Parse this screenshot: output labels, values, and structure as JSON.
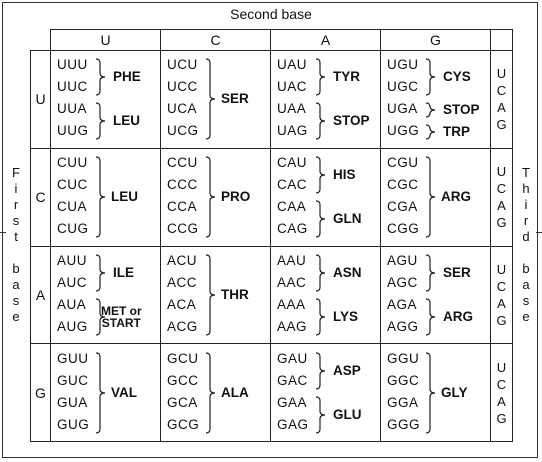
{
  "second_base_title": "Second base",
  "first_base_label": "First base",
  "third_base_label": "Third base",
  "columns": [
    "U",
    "C",
    "A",
    "G"
  ],
  "rows": [
    {
      "base": "U",
      "third": [
        "U",
        "C",
        "A",
        "G"
      ],
      "cells": [
        {
          "codons": [
            "UUU",
            "UUC",
            "UUA",
            "UUG"
          ],
          "groups": [
            {
              "amino": "PHE"
            },
            {
              "amino": "LEU"
            }
          ]
        },
        {
          "codons": [
            "UCU",
            "UCC",
            "UCA",
            "UCG"
          ],
          "groups": [
            {
              "amino": "SER"
            }
          ]
        },
        {
          "codons": [
            "UAU",
            "UAC",
            "UAA",
            "UAG"
          ],
          "groups": [
            {
              "amino": "TYR"
            },
            {
              "amino": "STOP"
            }
          ]
        },
        {
          "codons": [
            "UGU",
            "UGC",
            "UGA",
            "UGG"
          ],
          "groups": [
            {
              "amino": "CYS"
            },
            {
              "amino": "STOP"
            },
            {
              "amino": "TRP"
            }
          ]
        }
      ]
    },
    {
      "base": "C",
      "third": [
        "U",
        "C",
        "A",
        "G"
      ],
      "cells": [
        {
          "codons": [
            "CUU",
            "CUC",
            "CUA",
            "CUG"
          ],
          "groups": [
            {
              "amino": "LEU"
            }
          ]
        },
        {
          "codons": [
            "CCU",
            "CCC",
            "CCA",
            "CCG"
          ],
          "groups": [
            {
              "amino": "PRO"
            }
          ]
        },
        {
          "codons": [
            "CAU",
            "CAC",
            "CAA",
            "CAG"
          ],
          "groups": [
            {
              "amino": "HIS"
            },
            {
              "amino": "GLN"
            }
          ]
        },
        {
          "codons": [
            "CGU",
            "CGC",
            "CGA",
            "CGG"
          ],
          "groups": [
            {
              "amino": "ARG"
            }
          ]
        }
      ]
    },
    {
      "base": "A",
      "third": [
        "U",
        "C",
        "A",
        "G"
      ],
      "cells": [
        {
          "codons": [
            "AUU",
            "AUC",
            "AUA",
            "AUG"
          ],
          "groups": [
            {
              "amino": "ILE"
            },
            {
              "amino": "MET or",
              "amino2": "START"
            }
          ]
        },
        {
          "codons": [
            "ACU",
            "ACC",
            "ACA",
            "ACG"
          ],
          "groups": [
            {
              "amino": "THR"
            }
          ]
        },
        {
          "codons": [
            "AAU",
            "AAC",
            "AAA",
            "AAG"
          ],
          "groups": [
            {
              "amino": "ASN"
            },
            {
              "amino": "LYS"
            }
          ]
        },
        {
          "codons": [
            "AGU",
            "AGC",
            "AGA",
            "AGG"
          ],
          "groups": [
            {
              "amino": "SER"
            },
            {
              "amino": "ARG"
            }
          ]
        }
      ]
    },
    {
      "base": "G",
      "third": [
        "U",
        "C",
        "A",
        "G"
      ],
      "cells": [
        {
          "codons": [
            "GUU",
            "GUC",
            "GUA",
            "GUG"
          ],
          "groups": [
            {
              "amino": "VAL"
            }
          ]
        },
        {
          "codons": [
            "GCU",
            "GCC",
            "GCA",
            "GCG"
          ],
          "groups": [
            {
              "amino": "ALA"
            }
          ]
        },
        {
          "codons": [
            "GAU",
            "GAC",
            "GAA",
            "GAG"
          ],
          "groups": [
            {
              "amino": "ASP"
            },
            {
              "amino": "GLU"
            }
          ]
        },
        {
          "codons": [
            "GGU",
            "GGC",
            "GGA",
            "GGG"
          ],
          "groups": [
            {
              "amino": "GLY"
            }
          ]
        }
      ]
    }
  ]
}
